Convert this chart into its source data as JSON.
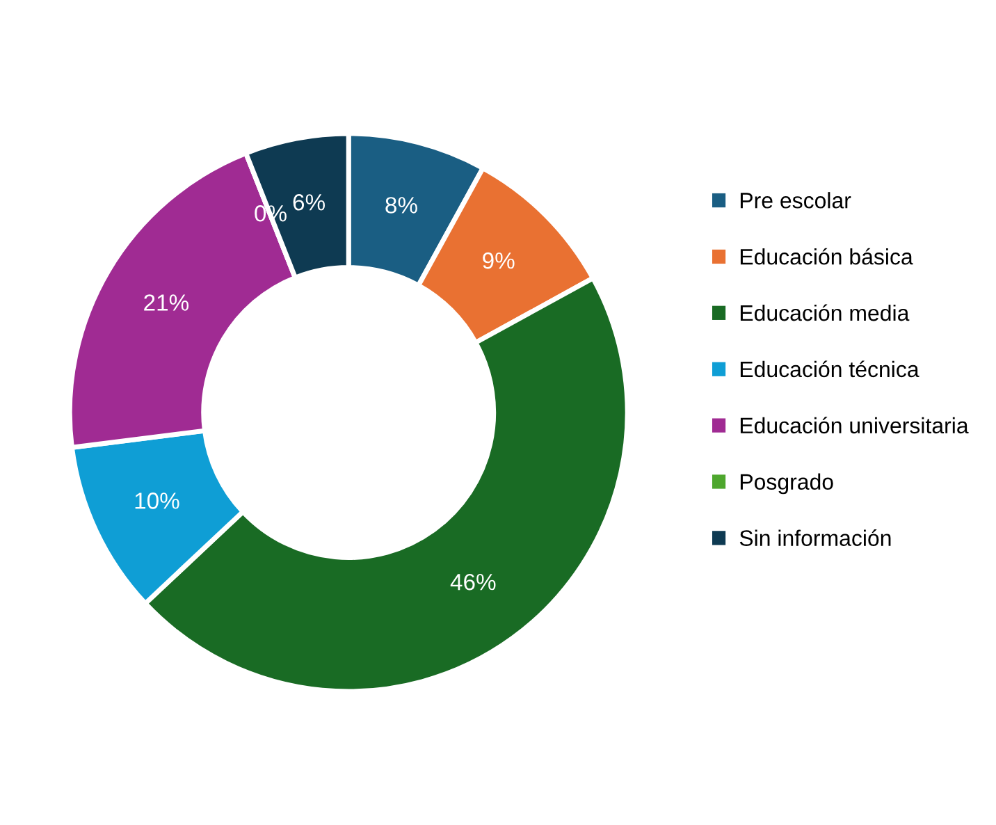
{
  "chart_data": {
    "type": "donut",
    "categories": [
      "Pre escolar",
      "Educación básica",
      "Educación media",
      "Educación técnica",
      "Educación universitaria",
      "Posgrado",
      "Sin información"
    ],
    "values": [
      8,
      9,
      46,
      10,
      21,
      0,
      6
    ],
    "value_labels": [
      "8%",
      "9%",
      "46%",
      "10%",
      "21%",
      "0%",
      "6%"
    ],
    "colors": [
      "#1a5e83",
      "#e97132",
      "#196b24",
      "#0f9ed5",
      "#a02b93",
      "#4ea72e",
      "#0e3a52"
    ],
    "legend": "right"
  }
}
